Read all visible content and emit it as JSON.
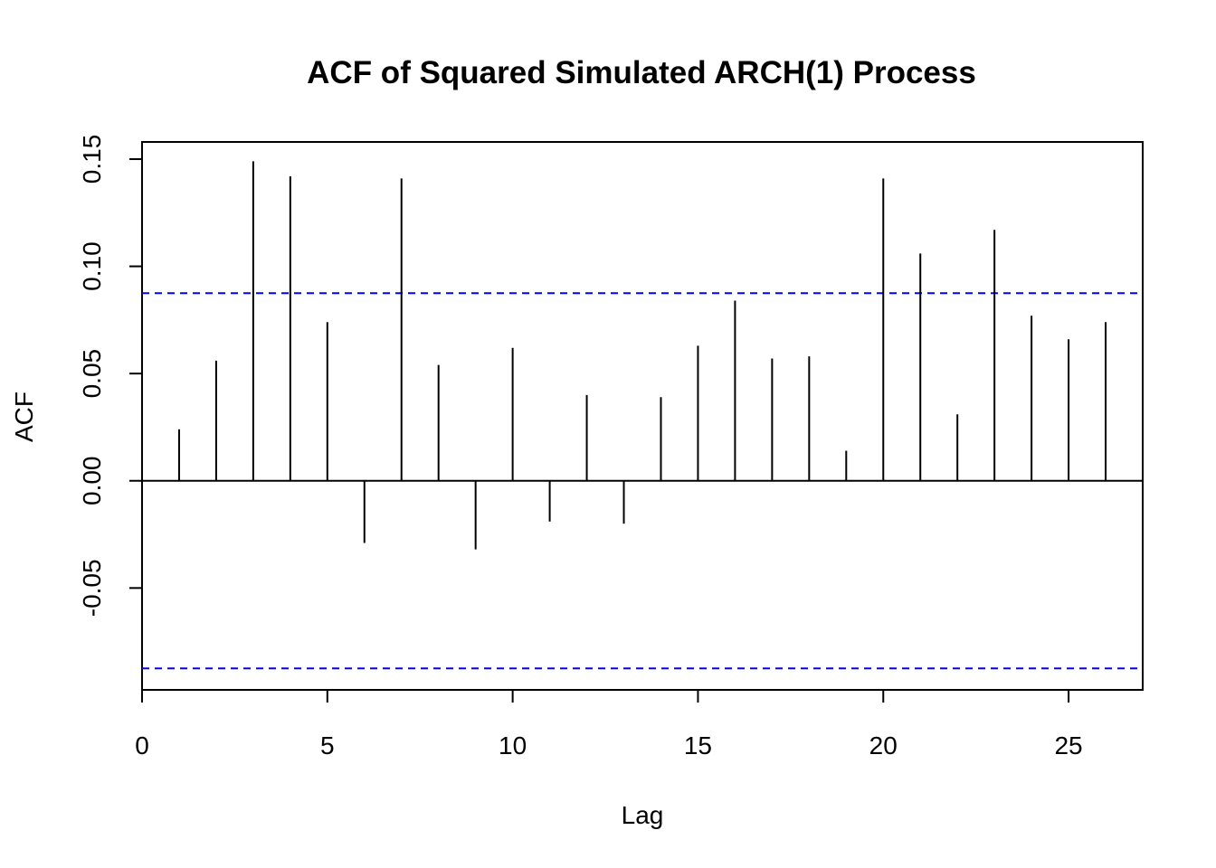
{
  "chart_data": {
    "type": "bar",
    "title": "ACF of Squared Simulated ARCH(1) Process",
    "xlabel": "Lag",
    "ylabel": "ACF",
    "xlim": [
      0,
      27
    ],
    "ylim": [
      -0.0975,
      0.158
    ],
    "x_ticks": [
      0,
      5,
      10,
      15,
      20,
      25
    ],
    "y_ticks": [
      -0.05,
      0.0,
      0.05,
      0.1,
      0.15
    ],
    "x_tick_labels": [
      "0",
      "5",
      "10",
      "15",
      "20",
      "25"
    ],
    "y_tick_labels": [
      "-0.05",
      "0.00",
      "0.05",
      "0.10",
      "0.15"
    ],
    "lags": [
      1,
      2,
      3,
      4,
      5,
      6,
      7,
      8,
      9,
      10,
      11,
      12,
      13,
      14,
      15,
      16,
      17,
      18,
      19,
      20,
      21,
      22,
      23,
      24,
      25,
      26
    ],
    "values": [
      0.024,
      0.056,
      0.149,
      0.142,
      0.074,
      -0.029,
      0.141,
      0.054,
      -0.032,
      0.062,
      -0.019,
      0.04,
      -0.02,
      0.039,
      0.063,
      0.084,
      0.057,
      0.058,
      0.014,
      0.141,
      0.106,
      0.031,
      0.117,
      0.077,
      0.066,
      0.074
    ],
    "confidence_bounds": [
      0.0875,
      -0.0875
    ],
    "bound_color": "#0000ff",
    "line_color": "#000000",
    "grid": false
  }
}
